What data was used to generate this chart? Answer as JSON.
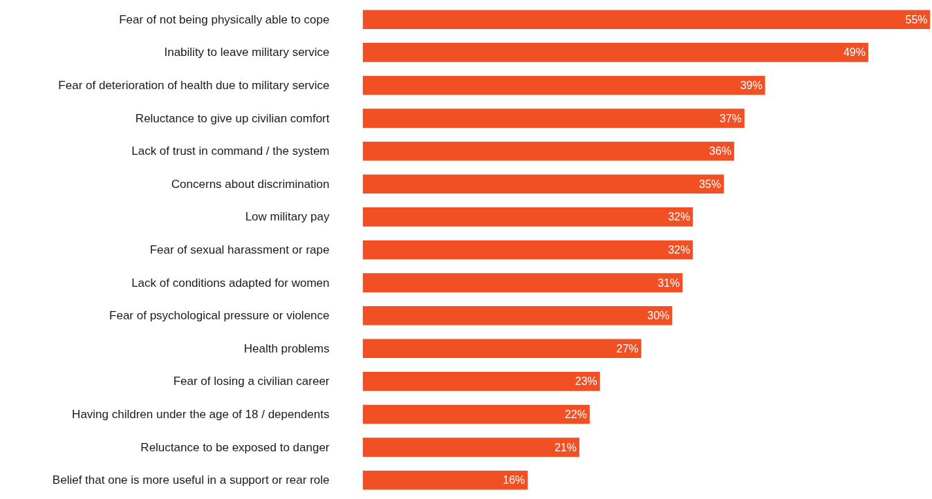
{
  "chart_data": {
    "type": "bar",
    "orientation": "horizontal",
    "color": "#f15025",
    "categories": [
      "Fear of not being physically able to cope",
      "Inability to leave military service",
      "Fear of deterioration of health due to military service",
      "Reluctance to give up civilian comfort",
      "Lack of trust in command / the system",
      "Concerns about discrimination",
      "Low military pay",
      "Fear of sexual harassment or rape",
      "Lack of conditions adapted for women",
      "Fear of psychological pressure or violence",
      "Health problems",
      "Fear of losing a civilian career",
      "Having children under the age of 18 / dependents",
      "Reluctance to be exposed to danger",
      "Belief that one is more useful in a support or rear role"
    ],
    "values": [
      55,
      49,
      39,
      37,
      36,
      35,
      32,
      32,
      31,
      30,
      27,
      23,
      22,
      21,
      16
    ],
    "value_labels": [
      "55%",
      "49%",
      "39%",
      "37%",
      "36%",
      "35%",
      "32%",
      "32%",
      "31%",
      "30%",
      "27%",
      "23%",
      "22%",
      "21%",
      "16%"
    ]
  }
}
